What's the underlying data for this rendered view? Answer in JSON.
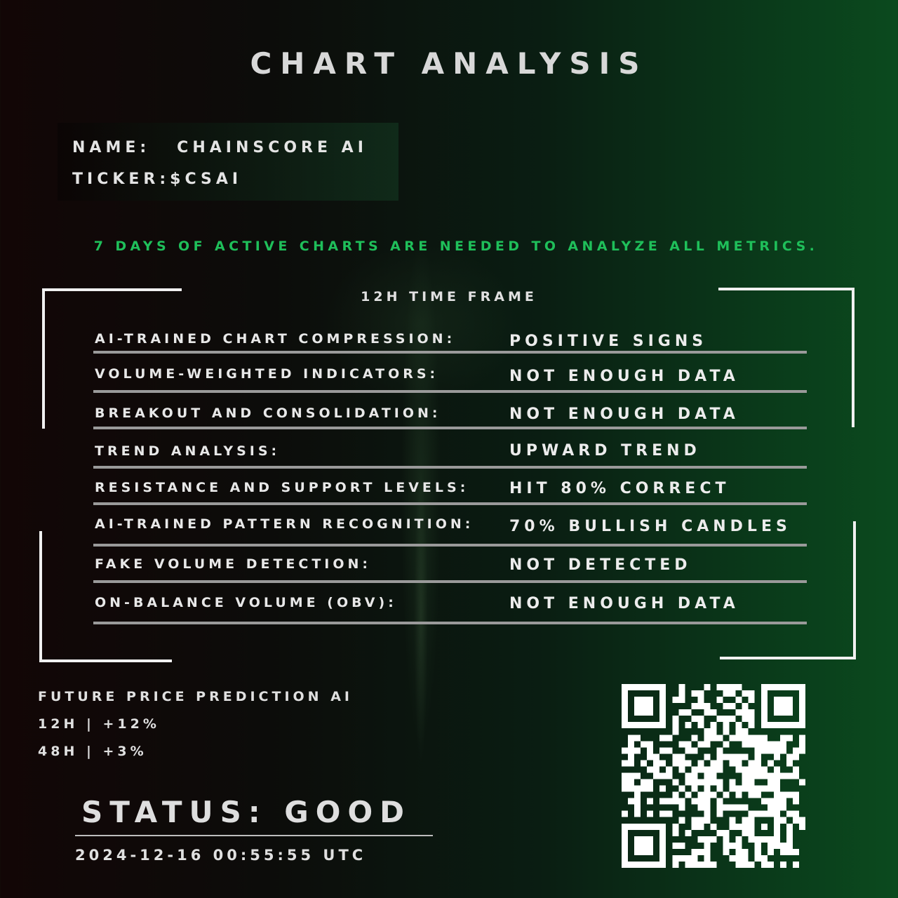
{
  "header": {
    "title": "CHART ANALYSIS"
  },
  "token": {
    "name_label": "NAME:",
    "name_value": "CHAINSCORE AI",
    "ticker_label": "TICKER:",
    "ticker_value": "$CSAI"
  },
  "notice": "7 DAYS OF ACTIVE CHARTS ARE NEEDED TO ANALYZE ALL METRICS.",
  "timeframe": "12H TIME FRAME",
  "metrics": [
    {
      "label": "AI-TRAINED CHART COMPRESSION:",
      "value": "POSITIVE SIGNS"
    },
    {
      "label": "VOLUME-WEIGHTED INDICATORS:",
      "value": "NOT ENOUGH DATA"
    },
    {
      "label": "BREAKOUT AND CONSOLIDATION:",
      "value": "NOT ENOUGH DATA"
    },
    {
      "label": "TREND ANALYSIS:",
      "value": "UPWARD TREND"
    },
    {
      "label": "RESISTANCE AND SUPPORT LEVELS:",
      "value": "HIT 80% CORRECT"
    },
    {
      "label": "AI-TRAINED PATTERN RECOGNITION:",
      "value": "70% BULLISH CANDLES"
    },
    {
      "label": "FAKE VOLUME DETECTION:",
      "value": "NOT DETECTED"
    },
    {
      "label": "ON-BALANCE VOLUME (OBV):",
      "value": "NOT ENOUGH DATA"
    }
  ],
  "prediction": {
    "title": "FUTURE PRICE PREDICTION AI",
    "lines": [
      "12H | +12%",
      "48H | +3%"
    ]
  },
  "status": {
    "text": "STATUS: GOOD",
    "timestamp": "2024-12-16 00:55:55 UTC"
  },
  "colors": {
    "accent_green": "#1fbf5a",
    "text": "#e2e2e2"
  },
  "icons": {
    "qr": "qr-code-icon"
  }
}
